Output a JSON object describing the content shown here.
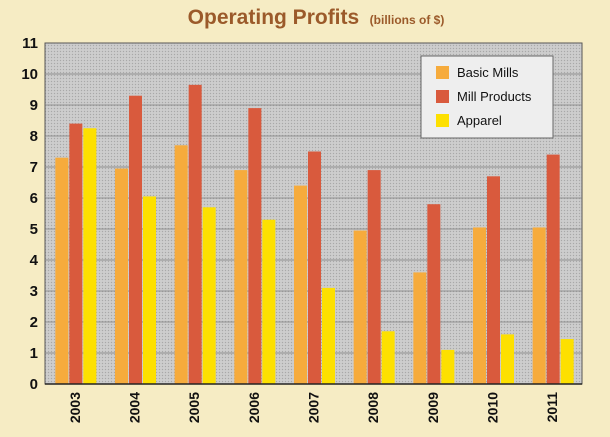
{
  "chart_data": {
    "type": "bar",
    "title": "Operating Profits",
    "subtitle": "(billions of $)",
    "categories": [
      "2003",
      "2004",
      "2005",
      "2006",
      "2007",
      "2008",
      "2009",
      "2010",
      "2011"
    ],
    "series": [
      {
        "name": "Basic Mills",
        "color": "#f6ab3c",
        "values": [
          7.3,
          6.95,
          7.7,
          6.9,
          6.4,
          4.95,
          3.6,
          5.05,
          5.05
        ]
      },
      {
        "name": "Mill Products",
        "color": "#d95a3d",
        "values": [
          8.4,
          9.3,
          9.65,
          8.9,
          7.5,
          6.9,
          5.8,
          6.7,
          7.4
        ]
      },
      {
        "name": "Apparel",
        "color": "#fde000",
        "values": [
          8.25,
          6.05,
          5.7,
          5.3,
          3.1,
          1.7,
          1.1,
          1.6,
          1.45
        ]
      }
    ],
    "ylim": [
      0,
      11
    ],
    "yticks": [
      "0",
      "1",
      "2",
      "3",
      "4",
      "5",
      "6",
      "7",
      "8",
      "9",
      "10",
      "11"
    ],
    "grid": true,
    "legend_position": "top-right",
    "xlabel": "",
    "ylabel": ""
  }
}
